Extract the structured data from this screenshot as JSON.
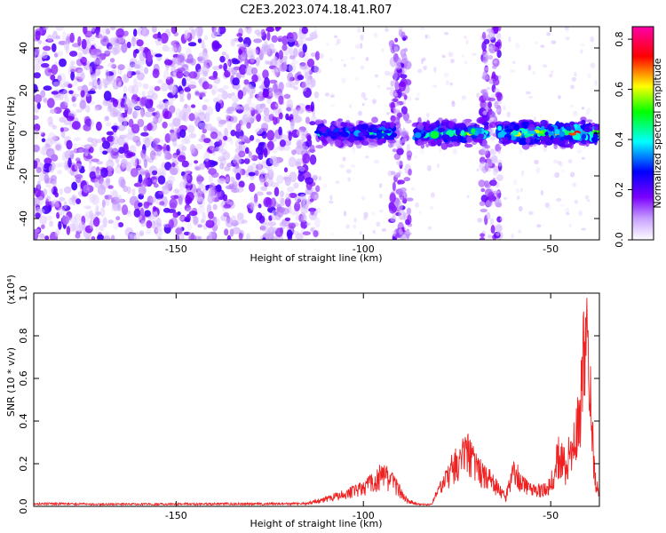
{
  "title": "C2E3.2023.074.18.41.R07",
  "chart_data": [
    {
      "type": "heatmap",
      "xlabel": "Height of straight line (km)",
      "ylabel": "Frequency (Hz)",
      "xlim": [
        -188,
        -37
      ],
      "ylim": [
        -50,
        50
      ],
      "x_ticks": [
        -150,
        -100,
        -50
      ],
      "y_ticks": [
        -40,
        -20,
        0,
        20,
        40
      ],
      "colorbar": {
        "label": "Normalized spectral amplitude",
        "range": [
          0,
          0.85
        ],
        "ticks": [
          0.0,
          0.2,
          0.4,
          0.6,
          0.8
        ],
        "colormap": [
          "#ffffff",
          "#7b00ff",
          "#0000ff",
          "#00ffff",
          "#00ff00",
          "#ffff00",
          "#ff0000",
          "#ff00ff"
        ]
      },
      "features": {
        "noise_region_x": [
          -188,
          -112
        ],
        "vertical_streaks_x": [
          -90,
          -66
        ],
        "signal_band_x": [
          -112,
          -37
        ],
        "signal_band_center_hz": 0,
        "peak_amplitude": 0.85
      }
    },
    {
      "type": "line",
      "xlabel": "Height of straight line (km)",
      "ylabel": "SNR (10 * v/v)",
      "y_multiplier": "(x10⁴)",
      "xlim": [
        -188,
        -37
      ],
      "ylim": [
        0,
        1.0
      ],
      "x_ticks": [
        -150,
        -100,
        -50
      ],
      "y_ticks": [
        0.0,
        0.2,
        0.4,
        0.6,
        0.8,
        1.0
      ],
      "color": "#ee2222",
      "series": [
        {
          "x": [
            -188,
            -170,
            -150,
            -130,
            -115,
            -110,
            -105,
            -100,
            -97,
            -95,
            -92,
            -90,
            -88,
            -85,
            -82,
            -80,
            -78,
            -75,
            -72,
            -70,
            -68,
            -65,
            -62,
            -60,
            -58,
            -55,
            -52,
            -50,
            -48,
            -46,
            -44,
            -42,
            -41,
            -40,
            -39,
            -38,
            -37
          ],
          "y": [
            0.015,
            0.012,
            0.013,
            0.014,
            0.015,
            0.04,
            0.07,
            0.1,
            0.14,
            0.18,
            0.13,
            0.08,
            0.03,
            0.01,
            0.01,
            0.08,
            0.15,
            0.26,
            0.3,
            0.22,
            0.18,
            0.12,
            0.05,
            0.2,
            0.14,
            0.1,
            0.09,
            0.12,
            0.28,
            0.22,
            0.35,
            0.55,
            0.98,
            0.75,
            0.45,
            0.12,
            0.08
          ]
        }
      ]
    }
  ]
}
